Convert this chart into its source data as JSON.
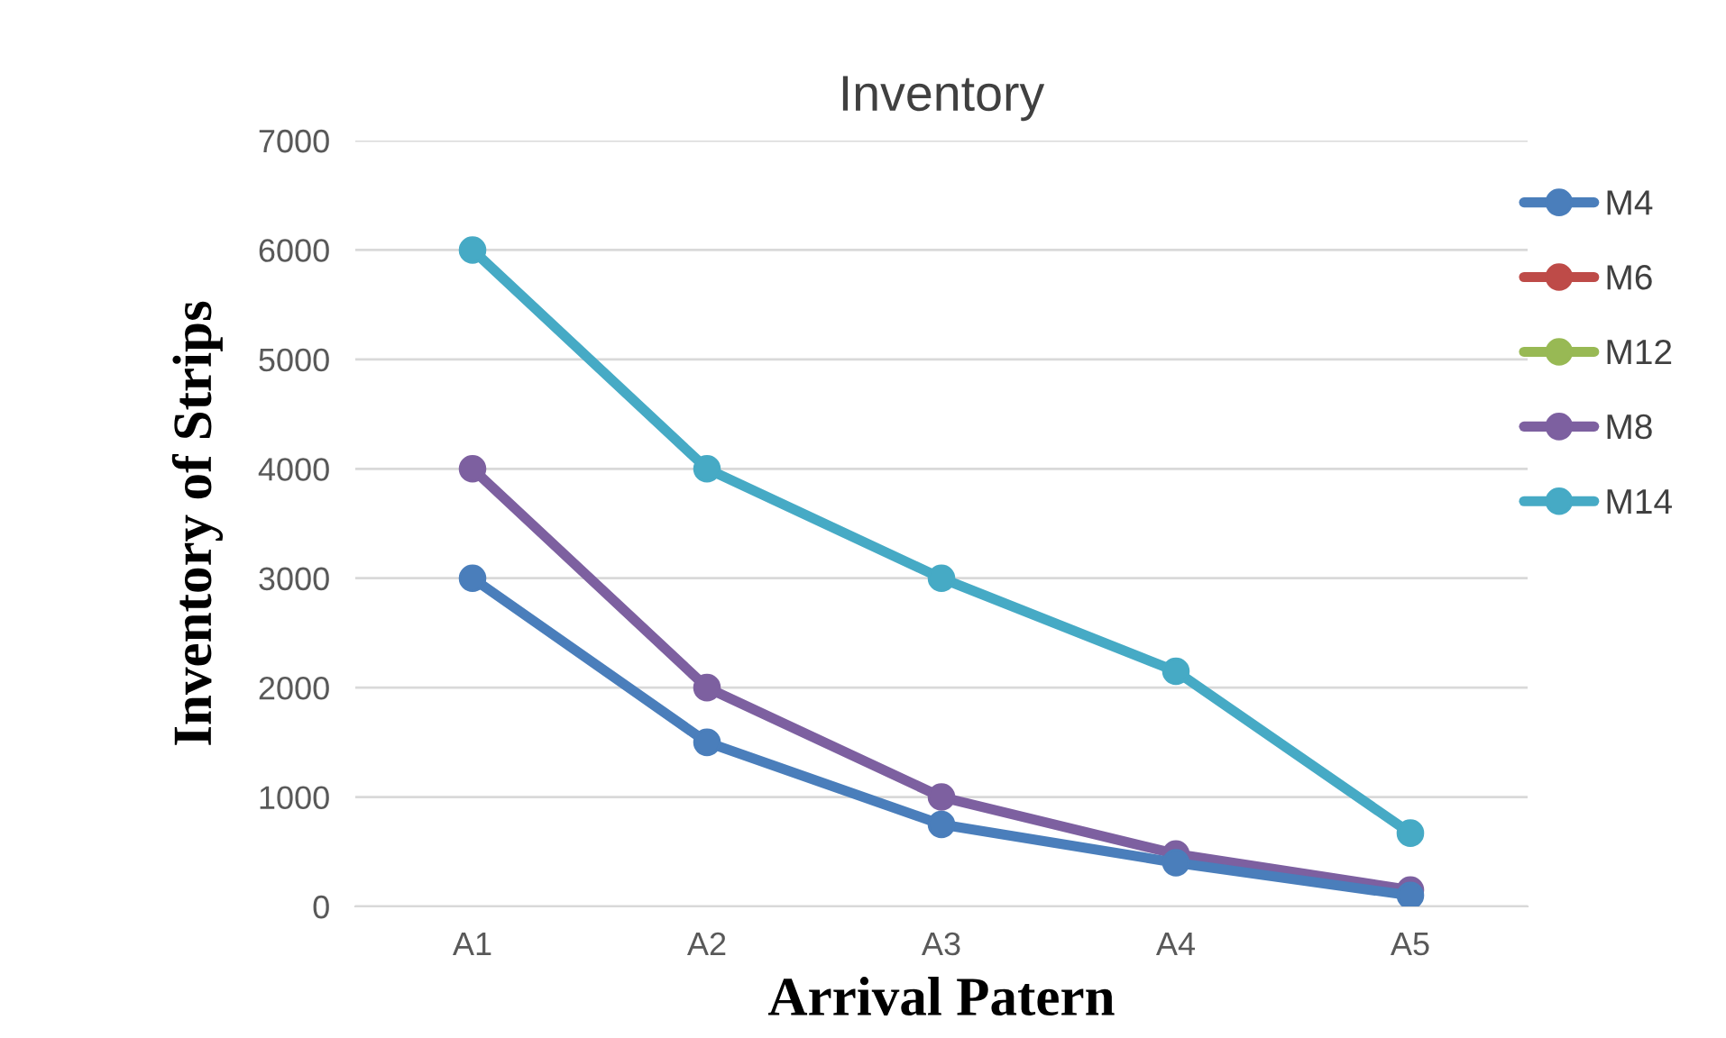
{
  "chart_data": {
    "type": "line",
    "title": "Inventory",
    "xlabel": "Arrival Patern",
    "ylabel": "Inventory of Strips",
    "categories": [
      "A1",
      "A2",
      "A3",
      "A4",
      "A5"
    ],
    "series": [
      {
        "name": "M4",
        "color": "#4a7ebb",
        "values": [
          3000,
          1500,
          750,
          400,
          100
        ]
      },
      {
        "name": "M6",
        "color": "#be4b48",
        "values": [
          null,
          null,
          null,
          null,
          null
        ]
      },
      {
        "name": "M12",
        "color": "#98b954",
        "values": [
          null,
          null,
          null,
          null,
          null
        ]
      },
      {
        "name": "M8",
        "color": "#7d60a0",
        "values": [
          4000,
          2000,
          1000,
          480,
          150
        ]
      },
      {
        "name": "M14",
        "color": "#46aac5",
        "values": [
          6000,
          4000,
          3000,
          2150,
          670
        ]
      }
    ],
    "ylim": [
      0,
      7000
    ],
    "yticks": [
      0,
      1000,
      2000,
      3000,
      4000,
      5000,
      6000,
      7000
    ],
    "grid": "y",
    "legend": "right",
    "marker": "circle",
    "line_style": "solid"
  }
}
